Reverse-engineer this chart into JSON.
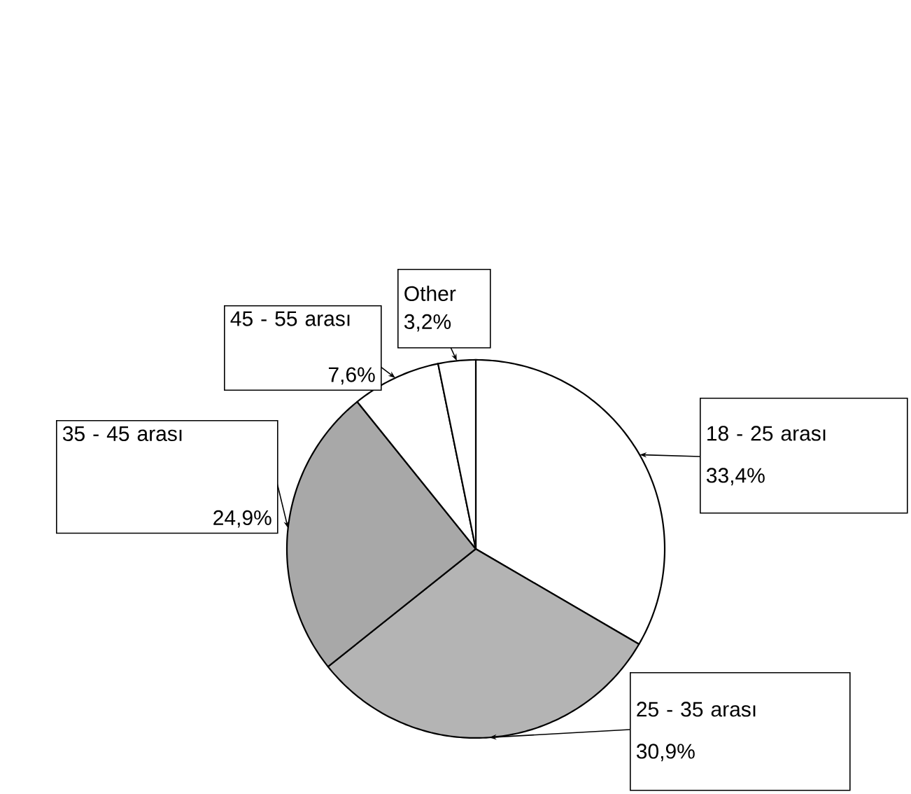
{
  "chart_data": {
    "type": "pie",
    "categories": [
      "18 - 25 arası",
      "25 - 35 arası",
      "35 - 45 arası",
      "45 - 55 arası",
      "Other"
    ],
    "values": [
      33.4,
      30.9,
      24.9,
      7.6,
      3.2
    ],
    "value_labels": [
      "33,4%",
      "30,9%",
      "24,9%",
      "7,6%",
      "3,2%"
    ],
    "colors": [
      "#ffffff",
      "#b4b4b4",
      "#a8a8a8",
      "#ffffff",
      "#ffffff"
    ]
  }
}
